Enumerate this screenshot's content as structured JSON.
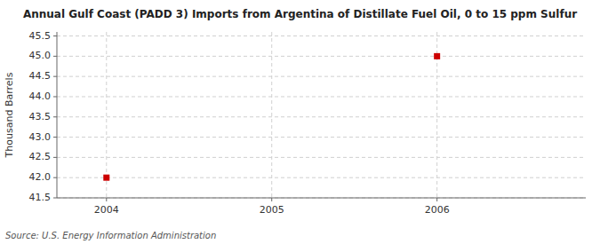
{
  "chart_data": {
    "type": "scatter",
    "title": "Annual Gulf Coast (PADD 3) Imports from Argentina of Distillate Fuel Oil, 0 to 15 ppm Sulfur",
    "y_label": "Thousand Barrels",
    "annotations": [
      "Source: U.S. Energy Information Administration"
    ],
    "x": [
      2004,
      2006
    ],
    "values": [
      42.0,
      45.0
    ],
    "color": "#cc0000",
    "marker": "square",
    "xlim": [
      2003.7,
      2006.9
    ],
    "ylim": [
      41.5,
      45.6
    ],
    "xticks": [
      2004,
      2005,
      2006
    ],
    "yticks": [
      41.5,
      {
        "value": 42.0,
        "label": "42.0"
      },
      42.5,
      {
        "value": 43.0,
        "label": "43.0"
      },
      43.5,
      {
        "value": 44.0,
        "label": "44.0"
      },
      44.5,
      {
        "value": 45.0,
        "label": "45.0"
      },
      45.5
    ],
    "grid": true
  }
}
